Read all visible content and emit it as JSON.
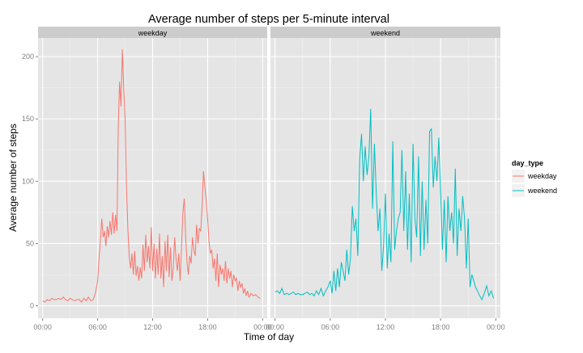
{
  "chart_data": {
    "type": "line",
    "title": "Average number of steps per 5-minute interval",
    "xlabel": "Time of day",
    "ylabel": "Average number of steps",
    "xlim": [
      -0.5,
      24.5
    ],
    "ylim": [
      -10,
      215
    ],
    "grid": true,
    "x_ticks": [
      0,
      6,
      12,
      18,
      24
    ],
    "x_tick_labels": [
      "00:00",
      "06:00",
      "12:00",
      "18:00",
      "00:00"
    ],
    "y_ticks": [
      0,
      50,
      100,
      150,
      200
    ],
    "y_tick_labels": [
      "0",
      "50",
      "100",
      "150",
      "200"
    ],
    "legend": {
      "title": "day_type",
      "placement": "right",
      "entries": [
        "weekday",
        "weekend"
      ]
    },
    "facets": [
      "weekday",
      "weekend"
    ],
    "series": [
      {
        "name": "weekday",
        "facet": "weekday",
        "color": "#F8766D",
        "x": [
          0.0,
          0.25,
          0.5,
          0.75,
          1.0,
          1.25,
          1.5,
          1.75,
          2.0,
          2.25,
          2.5,
          2.75,
          3.0,
          3.25,
          3.5,
          3.75,
          4.0,
          4.25,
          4.5,
          4.75,
          5.0,
          5.25,
          5.5,
          5.75,
          6.0,
          6.15,
          6.3,
          6.45,
          6.6,
          6.75,
          6.9,
          7.05,
          7.2,
          7.35,
          7.5,
          7.65,
          7.8,
          7.95,
          8.1,
          8.25,
          8.4,
          8.55,
          8.7,
          8.85,
          9.0,
          9.15,
          9.3,
          9.45,
          9.6,
          9.75,
          9.9,
          10.05,
          10.2,
          10.35,
          10.5,
          10.65,
          10.8,
          10.95,
          11.1,
          11.25,
          11.4,
          11.55,
          11.7,
          11.85,
          12.0,
          12.15,
          12.3,
          12.45,
          12.6,
          12.75,
          12.9,
          13.05,
          13.2,
          13.35,
          13.5,
          13.65,
          13.8,
          13.95,
          14.1,
          14.25,
          14.4,
          14.55,
          14.7,
          14.85,
          15.0,
          15.15,
          15.3,
          15.45,
          15.6,
          15.75,
          15.9,
          16.05,
          16.2,
          16.35,
          16.5,
          16.65,
          16.8,
          16.95,
          17.1,
          17.25,
          17.4,
          17.55,
          17.7,
          17.85,
          18.0,
          18.15,
          18.3,
          18.45,
          18.6,
          18.75,
          18.9,
          19.05,
          19.2,
          19.35,
          19.5,
          19.65,
          19.8,
          19.95,
          20.1,
          20.25,
          20.4,
          20.55,
          20.7,
          20.85,
          21.0,
          21.15,
          21.3,
          21.45,
          21.6,
          21.75,
          21.9,
          22.05,
          22.2,
          22.35,
          22.5,
          22.75,
          23.0,
          23.25,
          23.5,
          23.75
        ],
        "values": [
          4,
          3,
          5,
          4,
          6,
          5,
          5,
          6,
          5,
          7,
          5,
          4,
          6,
          5,
          4,
          5,
          5,
          3,
          6,
          4,
          7,
          4,
          5,
          10,
          20,
          38,
          52,
          70,
          55,
          60,
          48,
          64,
          55,
          68,
          57,
          75,
          58,
          73,
          60,
          145,
          180,
          160,
          206,
          175,
          150,
          95,
          62,
          40,
          30,
          42,
          25,
          44,
          24,
          32,
          20,
          31,
          22,
          49,
          28,
          57,
          35,
          48,
          30,
          63,
          28,
          50,
          22,
          46,
          25,
          58,
          22,
          40,
          15,
          52,
          28,
          57,
          23,
          47,
          20,
          30,
          55,
          38,
          28,
          42,
          20,
          48,
          75,
          86,
          55,
          35,
          25,
          40,
          34,
          55,
          45,
          40,
          65,
          50,
          62,
          60,
          80,
          108,
          95,
          85,
          70,
          52,
          42,
          45,
          30,
          38,
          20,
          42,
          15,
          33,
          25,
          30,
          20,
          36,
          18,
          30,
          22,
          28,
          15,
          25,
          20,
          22,
          12,
          20,
          15,
          18,
          10,
          14,
          8,
          12,
          7,
          10,
          8,
          9,
          7,
          6
        ]
      },
      {
        "name": "weekend",
        "facet": "weekend",
        "color": "#00BFC4",
        "x": [
          0.0,
          0.25,
          0.5,
          0.75,
          1.0,
          1.25,
          1.5,
          1.75,
          2.0,
          2.25,
          2.5,
          2.75,
          3.0,
          3.25,
          3.5,
          3.75,
          4.0,
          4.25,
          4.5,
          4.75,
          5.0,
          5.25,
          5.5,
          5.75,
          6.0,
          6.2,
          6.4,
          6.6,
          6.8,
          7.0,
          7.2,
          7.4,
          7.6,
          7.8,
          8.0,
          8.2,
          8.4,
          8.6,
          8.8,
          9.0,
          9.2,
          9.4,
          9.6,
          9.8,
          10.0,
          10.2,
          10.4,
          10.6,
          10.8,
          11.0,
          11.2,
          11.4,
          11.6,
          11.8,
          12.0,
          12.2,
          12.4,
          12.6,
          12.8,
          13.0,
          13.2,
          13.4,
          13.6,
          13.8,
          14.0,
          14.2,
          14.4,
          14.6,
          14.8,
          15.0,
          15.2,
          15.4,
          15.6,
          15.8,
          16.0,
          16.2,
          16.4,
          16.6,
          16.8,
          17.0,
          17.2,
          17.4,
          17.6,
          17.8,
          18.0,
          18.2,
          18.4,
          18.6,
          18.8,
          19.0,
          19.2,
          19.4,
          19.6,
          19.8,
          20.0,
          20.2,
          20.4,
          20.6,
          20.8,
          21.0,
          21.2,
          21.4,
          21.6,
          21.8,
          22.0,
          22.25,
          22.5,
          22.75,
          23.0,
          23.25,
          23.5,
          23.75
        ],
        "values": [
          11,
          12,
          10,
          14,
          9,
          10,
          9,
          10,
          11,
          9,
          10,
          9,
          9,
          10,
          11,
          9,
          10,
          8,
          12,
          9,
          14,
          8,
          12,
          15,
          20,
          10,
          28,
          12,
          30,
          15,
          35,
          28,
          20,
          45,
          25,
          38,
          80,
          60,
          70,
          40,
          118,
          138,
          100,
          128,
          105,
          120,
          158,
          78,
          130,
          92,
          60,
          78,
          28,
          48,
          90,
          30,
          58,
          35,
          132,
          45,
          60,
          70,
          75,
          125,
          60,
          108,
          45,
          90,
          35,
          130,
          70,
          55,
          120,
          40,
          100,
          45,
          85,
          50,
          140,
          142,
          95,
          120,
          100,
          135,
          90,
          45,
          85,
          35,
          88,
          60,
          75,
          50,
          110,
          40,
          78,
          60,
          88,
          70,
          30,
          70,
          15,
          25,
          20,
          15,
          12,
          8,
          5,
          10,
          16,
          8,
          12,
          6
        ]
      }
    ]
  }
}
